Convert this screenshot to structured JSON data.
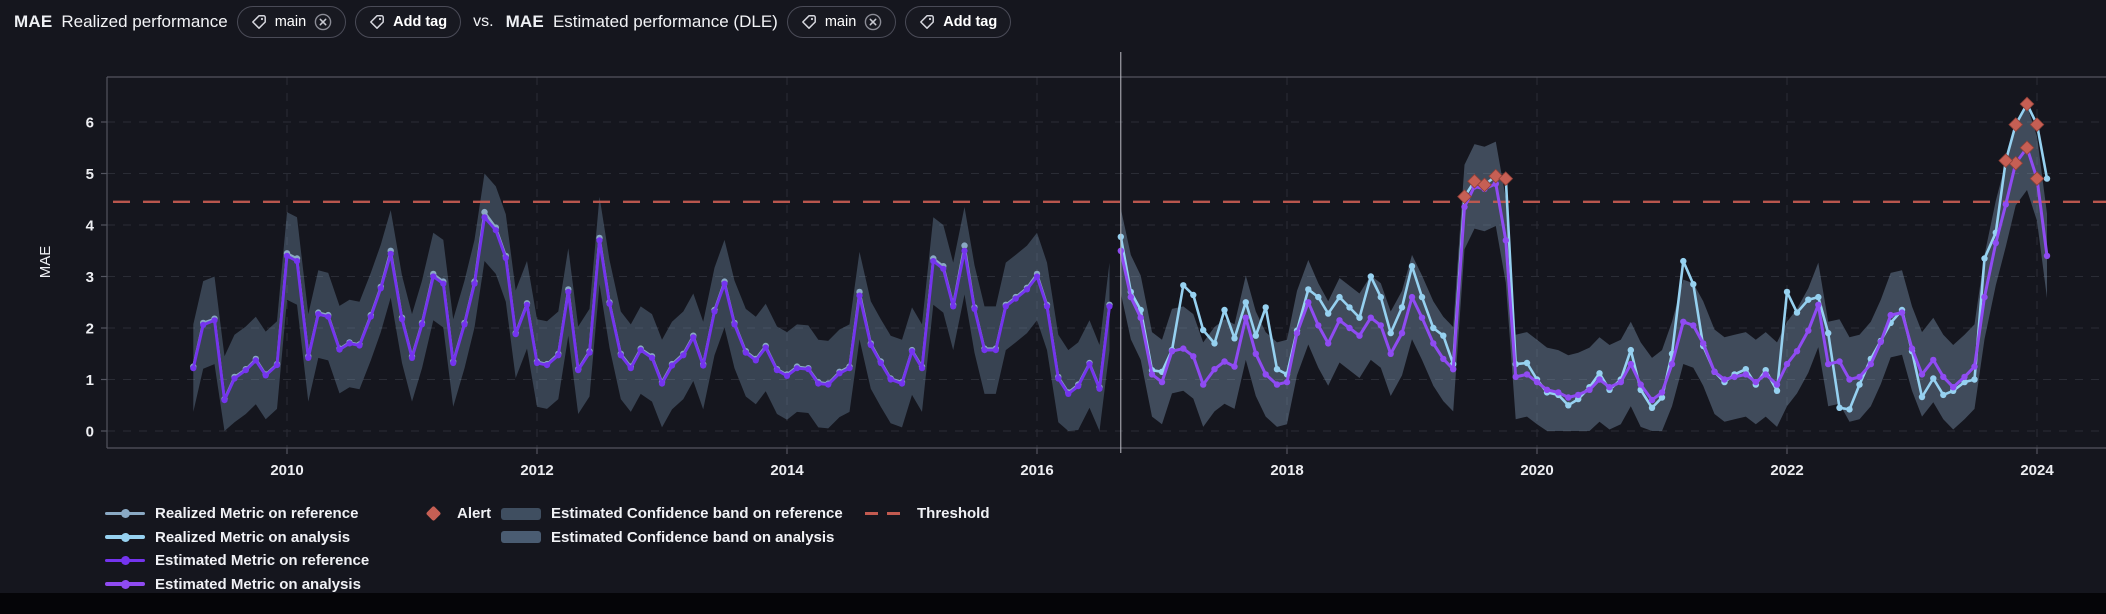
{
  "header": {
    "left_metric": "MAE",
    "left_title": "Realized performance",
    "vs_label": "vs.",
    "right_metric": "MAE",
    "right_title": "Estimated performance (DLE)",
    "left_tag": "main",
    "left_add_tag": "Add tag",
    "right_tag": "main",
    "right_add_tag": "Add tag"
  },
  "legend": {
    "items": [
      {
        "label": "Realized Metric on reference"
      },
      {
        "label": "Realized Metric on analysis"
      },
      {
        "label": "Estimated Metric on reference"
      },
      {
        "label": "Estimated Metric on analysis"
      },
      {
        "label": "Alert"
      },
      {
        "label": "Estimated Confidence band on reference"
      },
      {
        "label": "Estimated Confidence band on analysis"
      },
      {
        "label": "Threshold"
      }
    ]
  },
  "chart_data": {
    "type": "line",
    "title": "",
    "xlabel": "",
    "ylabel": "MAE",
    "yticks": [
      0,
      1,
      2,
      3,
      4,
      5,
      6
    ],
    "xticks": [
      2010,
      2012,
      2014,
      2016,
      2018,
      2020,
      2022,
      2024
    ],
    "ylim": [
      -0.33,
      6.9
    ],
    "xlim": [
      2008.57,
      2024.55
    ],
    "grid": true,
    "legend_position": "bottom",
    "threshold": {
      "value": 4.45,
      "label": "Threshold"
    },
    "split_x": 2016.67,
    "confidence_band": {
      "reference_half_width": 0.85,
      "analysis_half_width": 0.82
    },
    "reference": {
      "x": [
        2009.25,
        2009.33,
        2009.42,
        2009.5,
        2009.58,
        2009.67,
        2009.75,
        2009.83,
        2009.92,
        2010,
        2010.08,
        2010.17,
        2010.25,
        2010.33,
        2010.42,
        2010.5,
        2010.58,
        2010.67,
        2010.75,
        2010.83,
        2010.92,
        2011,
        2011.08,
        2011.17,
        2011.25,
        2011.33,
        2011.42,
        2011.5,
        2011.58,
        2011.67,
        2011.75,
        2011.83,
        2011.92,
        2012,
        2012.08,
        2012.17,
        2012.25,
        2012.33,
        2012.42,
        2012.5,
        2012.58,
        2012.67,
        2012.75,
        2012.83,
        2012.92,
        2013,
        2013.08,
        2013.17,
        2013.25,
        2013.33,
        2013.42,
        2013.5,
        2013.58,
        2013.67,
        2013.75,
        2013.83,
        2013.92,
        2014,
        2014.08,
        2014.17,
        2014.25,
        2014.33,
        2014.42,
        2014.5,
        2014.58,
        2014.67,
        2014.75,
        2014.83,
        2014.92,
        2015,
        2015.08,
        2015.17,
        2015.25,
        2015.33,
        2015.42,
        2015.5,
        2015.58,
        2015.67,
        2015.75,
        2015.83,
        2015.92,
        2016,
        2016.08,
        2016.17,
        2016.25,
        2016.33,
        2016.42,
        2016.5,
        2016.58
      ],
      "realized": [
        1.25,
        2.1,
        2.18,
        0.62,
        1.05,
        1.2,
        1.4,
        1.1,
        1.3,
        3.45,
        3.35,
        1.45,
        2.3,
        2.25,
        1.6,
        1.72,
        1.68,
        2.25,
        2.8,
        3.5,
        2.2,
        1.45,
        2.1,
        3.05,
        2.9,
        1.35,
        2.1,
        2.9,
        4.25,
        3.95,
        3.4,
        1.9,
        2.48,
        1.35,
        1.3,
        1.5,
        2.75,
        1.2,
        1.55,
        3.75,
        2.5,
        1.5,
        1.25,
        1.6,
        1.45,
        0.95,
        1.3,
        1.5,
        1.85,
        1.3,
        2.35,
        2.9,
        2.1,
        1.55,
        1.4,
        1.65,
        1.2,
        1.1,
        1.25,
        1.22,
        0.95,
        0.92,
        1.15,
        1.25,
        2.7,
        1.7,
        1.35,
        1.02,
        0.95,
        1.57,
        1.25,
        3.35,
        3.2,
        2.45,
        3.6,
        2.4,
        1.6,
        1.6,
        2.45,
        2.6,
        2.78,
        3.05,
        2.45,
        1.05,
        0.75,
        0.9,
        1.32,
        0.85,
        2.45
      ],
      "estimated": [
        1.22,
        2.06,
        2.15,
        0.6,
        1.02,
        1.18,
        1.37,
        1.08,
        1.28,
        3.4,
        3.3,
        1.42,
        2.27,
        2.22,
        1.58,
        1.7,
        1.66,
        2.22,
        2.77,
        3.44,
        2.17,
        1.42,
        2.07,
        3.0,
        2.86,
        1.32,
        2.07,
        2.86,
        4.15,
        3.9,
        3.36,
        1.88,
        2.45,
        1.32,
        1.28,
        1.47,
        2.7,
        1.18,
        1.52,
        3.7,
        2.47,
        1.47,
        1.22,
        1.57,
        1.42,
        0.92,
        1.27,
        1.47,
        1.82,
        1.27,
        2.32,
        2.86,
        2.07,
        1.52,
        1.37,
        1.62,
        1.18,
        1.07,
        1.22,
        1.2,
        0.92,
        0.9,
        1.12,
        1.22,
        2.63,
        1.67,
        1.32,
        1.0,
        0.92,
        1.55,
        1.22,
        3.3,
        3.15,
        2.42,
        3.5,
        2.37,
        1.57,
        1.57,
        2.42,
        2.57,
        2.75,
        3.0,
        2.42,
        1.02,
        0.72,
        0.87,
        1.3,
        0.82,
        2.42
      ]
    },
    "analysis": {
      "x": [
        2016.67,
        2016.75,
        2016.83,
        2016.92,
        2017,
        2017.08,
        2017.17,
        2017.25,
        2017.33,
        2017.42,
        2017.5,
        2017.58,
        2017.67,
        2017.75,
        2017.83,
        2017.92,
        2018,
        2018.08,
        2018.17,
        2018.25,
        2018.33,
        2018.42,
        2018.5,
        2018.58,
        2018.67,
        2018.75,
        2018.83,
        2018.92,
        2019,
        2019.08,
        2019.17,
        2019.25,
        2019.33,
        2019.42,
        2019.5,
        2019.58,
        2019.67,
        2019.75,
        2019.83,
        2019.92,
        2020,
        2020.08,
        2020.17,
        2020.25,
        2020.33,
        2020.42,
        2020.5,
        2020.58,
        2020.67,
        2020.75,
        2020.83,
        2020.92,
        2021,
        2021.08,
        2021.17,
        2021.25,
        2021.33,
        2021.42,
        2021.5,
        2021.58,
        2021.67,
        2021.75,
        2021.83,
        2021.92,
        2022,
        2022.08,
        2022.17,
        2022.25,
        2022.33,
        2022.42,
        2022.5,
        2022.58,
        2022.67,
        2022.75,
        2022.83,
        2022.92,
        2023,
        2023.08,
        2023.17,
        2023.25,
        2023.33,
        2023.42,
        2023.5,
        2023.58,
        2023.67,
        2023.75,
        2023.83,
        2023.92,
        2024,
        2024.08
      ],
      "realized": [
        3.77,
        2.7,
        2.35,
        1.18,
        1.15,
        1.57,
        2.83,
        2.64,
        1.96,
        1.7,
        2.35,
        1.8,
        2.5,
        1.85,
        2.4,
        1.2,
        1.1,
        1.95,
        2.75,
        2.6,
        2.28,
        2.6,
        2.4,
        2.2,
        3.0,
        2.6,
        1.9,
        2.4,
        3.2,
        2.6,
        2.0,
        1.85,
        1.3,
        4.55,
        4.85,
        4.78,
        4.95,
        4.9,
        1.3,
        1.32,
        1.0,
        0.75,
        0.7,
        0.5,
        0.62,
        0.85,
        1.12,
        0.8,
        1.0,
        1.57,
        0.8,
        0.45,
        0.65,
        1.5,
        3.3,
        2.85,
        1.65,
        1.15,
        0.95,
        1.1,
        1.2,
        0.9,
        1.18,
        0.78,
        2.7,
        2.3,
        2.55,
        2.6,
        1.9,
        0.45,
        0.42,
        0.9,
        1.4,
        1.75,
        2.1,
        2.35,
        1.55,
        0.66,
        1.02,
        0.7,
        0.78,
        0.95,
        1.0,
        3.35,
        3.85,
        5.25,
        5.95,
        6.35,
        5.95,
        4.9
      ],
      "estimated": [
        3.5,
        2.6,
        2.2,
        1.1,
        0.95,
        1.55,
        1.6,
        1.45,
        0.9,
        1.2,
        1.35,
        1.25,
        2.2,
        1.5,
        1.1,
        0.9,
        0.95,
        1.9,
        2.5,
        2.05,
        1.7,
        2.15,
        2.0,
        1.85,
        2.2,
        2.05,
        1.5,
        1.9,
        2.6,
        2.2,
        1.7,
        1.4,
        1.2,
        4.35,
        4.75,
        4.7,
        4.8,
        3.7,
        1.05,
        1.1,
        0.95,
        0.8,
        0.75,
        0.65,
        0.7,
        0.8,
        1.0,
        0.85,
        0.95,
        1.3,
        0.9,
        0.6,
        0.75,
        1.3,
        2.12,
        2.05,
        1.7,
        1.15,
        1.0,
        1.05,
        1.1,
        0.95,
        1.1,
        0.9,
        1.3,
        1.55,
        1.95,
        2.45,
        1.3,
        1.35,
        1.0,
        1.05,
        1.3,
        1.73,
        2.25,
        2.3,
        1.6,
        1.1,
        1.38,
        1.05,
        0.85,
        1.05,
        1.25,
        2.6,
        3.65,
        4.4,
        5.2,
        5.5,
        4.9,
        3.4
      ]
    },
    "alerts": {
      "realized": [
        [
          2019.42,
          4.55
        ],
        [
          2019.5,
          4.85
        ],
        [
          2019.58,
          4.78
        ],
        [
          2019.67,
          4.95
        ],
        [
          2019.75,
          4.9
        ],
        [
          2023.75,
          5.25
        ],
        [
          2023.83,
          5.95
        ],
        [
          2023.92,
          6.35
        ],
        [
          2024,
          5.95
        ]
      ],
      "estimated": [
        [
          2023.83,
          5.2
        ],
        [
          2023.92,
          5.5
        ],
        [
          2024,
          4.9
        ]
      ]
    },
    "colors": {
      "realized_reference": "#8aa9c4",
      "realized_analysis": "#96d1f0",
      "estimated_reference": "#7434ee",
      "estimated_analysis": "#8f4bf2",
      "band_reference": "rgba(125,155,185,0.34)",
      "band_analysis": "rgba(140,170,200,0.36)",
      "band_reference_swatch": "#3f4e60",
      "band_analysis_swatch": "#4a5c72",
      "alert": "#c65f54",
      "threshold": "#c25a50",
      "grid": "#2a2c35",
      "axis": "#53545f",
      "tick_text": "#edeef2",
      "split_line": "#b9bac2"
    }
  }
}
